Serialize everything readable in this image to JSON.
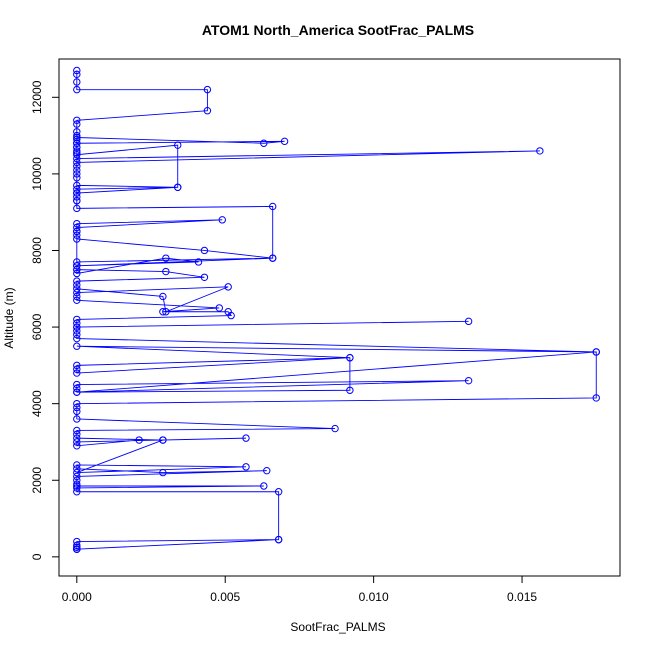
{
  "chart_data": {
    "type": "line",
    "title": "ATOM1 North_America SootFrac_PALMS",
    "xlabel": "SootFrac_PALMS",
    "ylabel": "Altitude (m)",
    "xlim": [
      -0.0006,
      0.0183
    ],
    "ylim": [
      -500,
      13000
    ],
    "xticks": [
      0.0,
      0.005,
      0.01,
      0.015
    ],
    "xtick_labels": [
      "0.000",
      "0.005",
      "0.010",
      "0.015"
    ],
    "yticks": [
      0,
      2000,
      4000,
      6000,
      8000,
      10000,
      12000
    ],
    "ytick_labels": [
      "0",
      "2000",
      "4000",
      "6000",
      "8000",
      "10000",
      "12000"
    ],
    "grid": false,
    "series_color": "#0000ff",
    "series": [
      {
        "x": [
          0,
          0,
          0,
          0,
          0.0044,
          0.0044,
          0,
          0,
          0,
          0,
          0,
          0,
          0,
          0,
          0,
          0.0034,
          0.0034,
          0,
          0,
          0,
          0,
          0.0063,
          0.007,
          0,
          0,
          0,
          0,
          0.0156,
          0,
          0,
          0,
          0,
          0,
          0,
          0.0034,
          0,
          0,
          0,
          0,
          0.0066,
          0.0066,
          0,
          0,
          0,
          0.0049,
          0,
          0,
          0,
          0,
          0.0043,
          0.0066,
          0,
          0,
          0,
          0.003,
          0.0041,
          0,
          0,
          0.003,
          0.0043,
          0,
          0,
          0,
          0.0029,
          0.003,
          0.0051,
          0,
          0,
          0,
          0.0048,
          0.0029,
          0.0051,
          0.0052,
          0,
          0,
          0,
          0.0132,
          0,
          0,
          0,
          0,
          0.0175,
          0,
          0.0092,
          0,
          0,
          0,
          0.0092,
          0.0092,
          0,
          0.0132,
          0,
          0,
          0,
          0.0175,
          0.0175,
          0,
          0,
          0,
          0,
          0.0087,
          0,
          0,
          0,
          0.0029,
          0.0057,
          0,
          0,
          0.0021,
          0.0029,
          0,
          0.0057,
          0,
          0,
          0.0029,
          0.0064,
          0,
          0,
          0,
          0,
          0.0063,
          0,
          0,
          0.0068,
          0.0068,
          0,
          0,
          0,
          0,
          0,
          0,
          0.0068,
          0
        ],
        "y": [
          12700,
          12600,
          12400,
          12200,
          12200,
          11650,
          11400,
          11300,
          11100,
          11000,
          10900,
          10800,
          10700,
          10600,
          10500,
          10750,
          9650,
          9500,
          9400,
          9300,
          10950,
          10800,
          10850,
          10800,
          10700,
          10550,
          10400,
          10600,
          10300,
          10200,
          10100,
          10000,
          9900,
          9700,
          9650,
          9600,
          9500,
          9300,
          9100,
          9150,
          7800,
          7700,
          8500,
          8600,
          8800,
          8700,
          8500,
          8400,
          8300,
          8000,
          7800,
          7600,
          7500,
          7400,
          7800,
          7700,
          7600,
          7500,
          7450,
          7300,
          7200,
          7100,
          7000,
          6800,
          6400,
          7050,
          6900,
          6800,
          6700,
          6500,
          6400,
          6400,
          6300,
          6200,
          6100,
          6000,
          6150,
          6000,
          5900,
          5800,
          5700,
          5350,
          5500,
          5200,
          5000,
          4900,
          4800,
          5200,
          4350,
          4300,
          4600,
          4500,
          4400,
          4300,
          5350,
          4150,
          4000,
          3900,
          3800,
          3600,
          3350,
          3300,
          3200,
          3100,
          3050,
          3100,
          3000,
          2900,
          3050,
          3050,
          2200,
          2350,
          2400,
          2300,
          2200,
          2250,
          2100,
          2000,
          1900,
          1850,
          1850,
          1800,
          1700,
          1700,
          450,
          400,
          300,
          250,
          200,
          200,
          200,
          450,
          200
        ]
      }
    ]
  }
}
